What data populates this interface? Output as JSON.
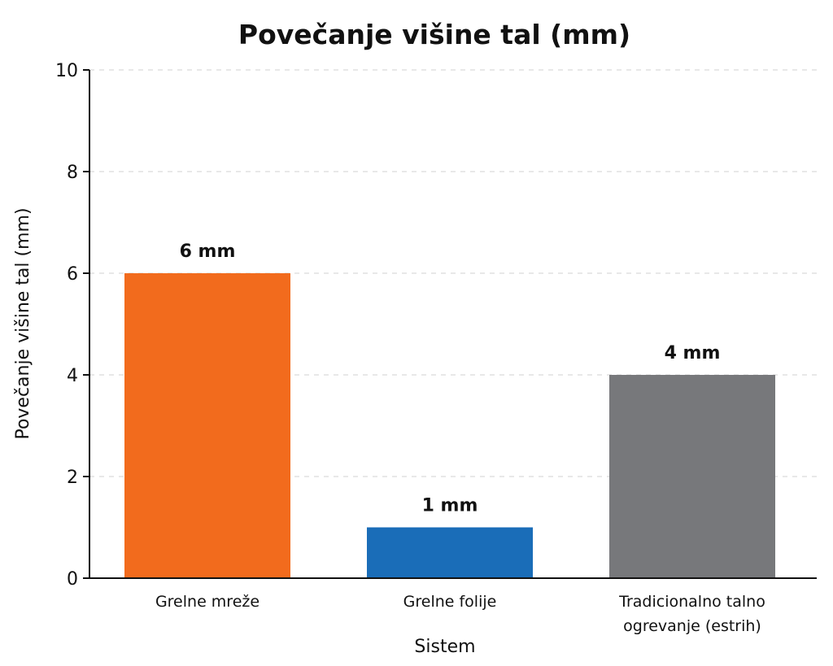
{
  "chart_data": {
    "type": "bar",
    "title": "Povečanje višine tal (mm)",
    "xlabel": "Sistem",
    "ylabel": "Povečanje višine tal (mm)",
    "ylim": [
      0,
      10
    ],
    "yticks": [
      0,
      2,
      4,
      6,
      8,
      10
    ],
    "grid": true,
    "categories": [
      [
        "Grelne mreže"
      ],
      [
        "Grelne folije"
      ],
      [
        "Tradicionalno talno",
        "ogrevanje (estrih)"
      ]
    ],
    "values": [
      6,
      1,
      4
    ],
    "data_labels": [
      "6 mm",
      "1 mm",
      "4 mm"
    ],
    "colors": [
      "#F26B1D",
      "#1A6DB8",
      "#77787B"
    ]
  }
}
